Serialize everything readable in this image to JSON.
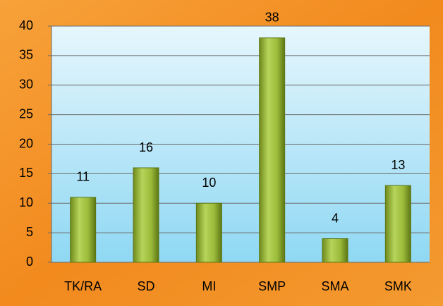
{
  "chart_data": {
    "type": "bar",
    "categories": [
      "TK/RA",
      "SD",
      "MI",
      "SMP",
      "SMA",
      "SMK"
    ],
    "values": [
      11,
      16,
      10,
      38,
      4,
      13
    ],
    "color": "#9bbb3a",
    "ylim": [
      0,
      40
    ],
    "yticks": [
      0,
      5,
      10,
      15,
      20,
      25,
      30,
      35,
      40
    ],
    "grid": true
  }
}
